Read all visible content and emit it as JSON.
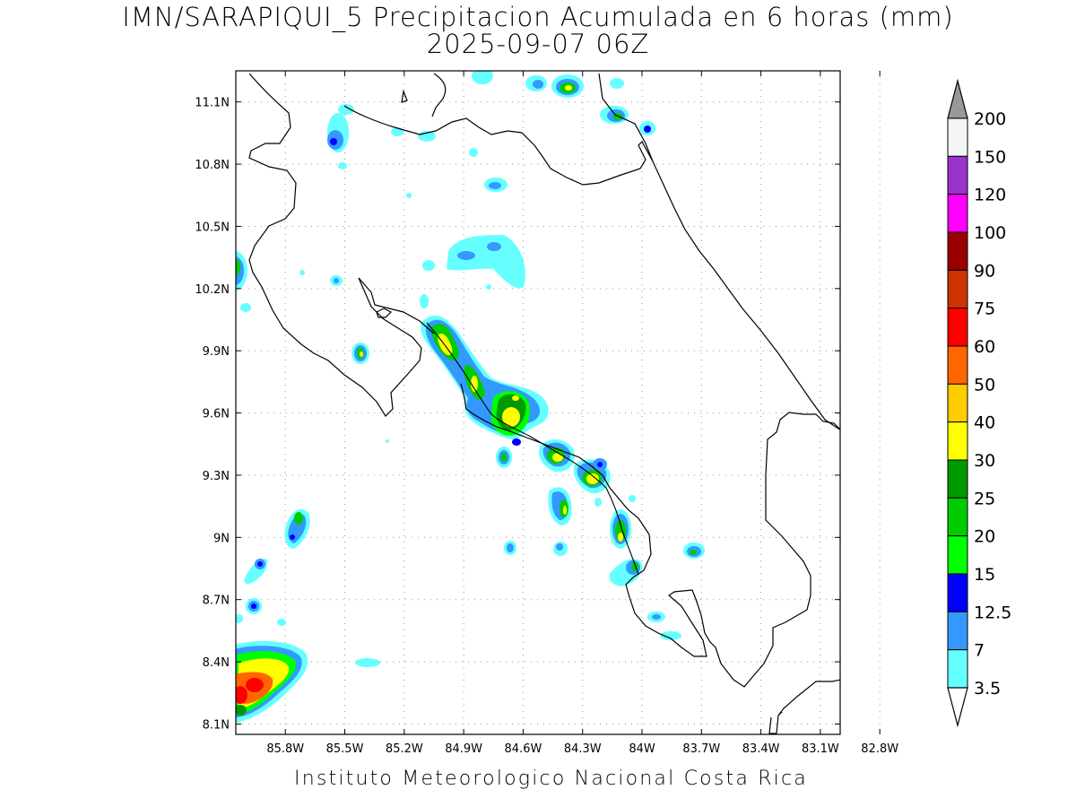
{
  "title": "IMN/SARAPIQUI_5 Precipitacion Acumulada en 6 horas (mm)",
  "subtitle": "2025-09-07 06Z",
  "footer": "Instituto Meteorologico Nacional Costa Rica",
  "map": {
    "lon_range": [
      -86.05,
      -83.0
    ],
    "lat_range": [
      8.05,
      11.25
    ],
    "lat_ticks": [
      {
        "value": 11.1,
        "label": "11.1N"
      },
      {
        "value": 10.8,
        "label": "10.8N"
      },
      {
        "value": 10.5,
        "label": "10.5N"
      },
      {
        "value": 10.2,
        "label": "10.2N"
      },
      {
        "value": 9.9,
        "label": "9.9N"
      },
      {
        "value": 9.6,
        "label": "9.6N"
      },
      {
        "value": 9.3,
        "label": "9.3N"
      },
      {
        "value": 9.0,
        "label": "9N"
      },
      {
        "value": 8.7,
        "label": "8.7N"
      },
      {
        "value": 8.4,
        "label": "8.4N"
      },
      {
        "value": 8.1,
        "label": "8.1N"
      }
    ],
    "lon_ticks": [
      {
        "value": -85.8,
        "label": "85.8W"
      },
      {
        "value": -85.5,
        "label": "85.5W"
      },
      {
        "value": -85.2,
        "label": "85.2W"
      },
      {
        "value": -84.9,
        "label": "84.9W"
      },
      {
        "value": -84.6,
        "label": "84.6W"
      },
      {
        "value": -84.3,
        "label": "84.3W"
      },
      {
        "value": -84.0,
        "label": "84W"
      },
      {
        "value": -83.7,
        "label": "83.7W"
      },
      {
        "value": -83.4,
        "label": "83.4W"
      },
      {
        "value": -83.1,
        "label": "83.1W"
      },
      {
        "value": -82.8,
        "label": "82.8W"
      }
    ],
    "grid": true
  },
  "colorbar": {
    "labels": [
      "200",
      "150",
      "120",
      "100",
      "90",
      "75",
      "60",
      "50",
      "40",
      "30",
      "25",
      "20",
      "15",
      "12.5",
      "7",
      "3.5"
    ],
    "colors": [
      "#f4f4f4",
      "#9933cc",
      "#ff00ff",
      "#990000",
      "#cc3300",
      "#ff0000",
      "#ff6600",
      "#ffcc00",
      "#ffff00",
      "#009900",
      "#00cc00",
      "#00ff00",
      "#0000ff",
      "#3399ff",
      "#66ffff"
    ],
    "top_arrow_color": "#999999",
    "bottom_arrow_color": "#ffffff"
  }
}
